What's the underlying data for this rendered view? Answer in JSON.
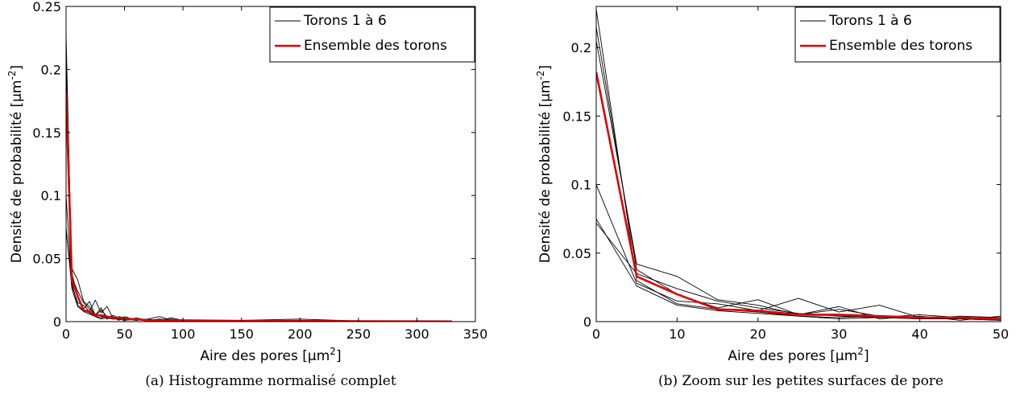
{
  "chart_data": [
    {
      "type": "line",
      "caption": "(a) Histogramme normalisé complet",
      "xlabel": "Aire des pores [μm",
      "xlabel_sup": "2",
      "xlabel_end": "]",
      "ylabel": "Densité de probabilité [μm",
      "ylabel_sup": "-2",
      "ylabel_end": "]",
      "xlim": [
        0,
        350
      ],
      "ylim": [
        0,
        0.25
      ],
      "xticks": [
        0,
        50,
        100,
        150,
        200,
        250,
        300,
        350
      ],
      "xtick_labels": [
        "0",
        "50",
        "100",
        "150",
        "200",
        "250",
        "300",
        "350"
      ],
      "yticks": [
        0,
        0.05,
        0.1,
        0.15,
        0.2,
        0.25
      ],
      "ytick_labels": [
        "0",
        "0.05",
        "0.1",
        "0.15",
        "0.2",
        "0.25"
      ],
      "grid": false,
      "legend": "top-right",
      "legend_entries": [
        "Torons 1 à 6",
        "Ensemble des torons"
      ],
      "series": [
        {
          "group": "Torons 1 à 6",
          "x": [
            0,
            5,
            10,
            15,
            20,
            25,
            30,
            35,
            40,
            45,
            50,
            60,
            70,
            80,
            90,
            100,
            150,
            200,
            250,
            300,
            330
          ],
          "y": [
            0.228,
            0.03,
            0.013,
            0.009,
            0.007,
            0.004,
            0.003,
            0.004,
            0.002,
            0.003,
            0.002,
            0.002,
            0.001,
            0.002,
            0.001,
            0.001,
            0.0005,
            0.0005,
            0.0003,
            0.0002,
            0.0001
          ]
        },
        {
          "group": "Torons 1 à 6",
          "x": [
            0,
            5,
            10,
            15,
            20,
            25,
            30,
            35,
            40,
            45,
            50,
            60,
            70,
            80,
            90,
            100,
            150,
            200,
            250,
            300,
            330
          ],
          "y": [
            0.215,
            0.038,
            0.02,
            0.01,
            0.016,
            0.005,
            0.011,
            0.002,
            0.004,
            0.001,
            0.004,
            0.001,
            0.002,
            0.001,
            0.003,
            0.001,
            0.001,
            0.002,
            0.0005,
            0.0003,
            0.0001
          ]
        },
        {
          "group": "Torons 1 à 6",
          "x": [
            0,
            5,
            10,
            15,
            20,
            25,
            30,
            35,
            40,
            45,
            50,
            60,
            70,
            80,
            90,
            100,
            150,
            200,
            250,
            300,
            330
          ],
          "y": [
            0.205,
            0.042,
            0.033,
            0.016,
            0.012,
            0.005,
            0.009,
            0.004,
            0.002,
            0.004,
            0.003,
            0.002,
            0.001,
            0.002,
            0.001,
            0.001,
            0.001,
            0.001,
            0.0004,
            0.0002,
            0.0001
          ]
        },
        {
          "group": "Torons 1 à 6",
          "x": [
            0,
            5,
            10,
            15,
            20,
            25,
            30,
            35,
            40,
            45,
            50,
            60,
            70,
            80,
            90,
            100,
            150,
            200,
            250,
            300,
            330
          ],
          "y": [
            0.1,
            0.028,
            0.015,
            0.013,
            0.008,
            0.017,
            0.007,
            0.012,
            0.003,
            0.002,
            0.001,
            0.003,
            0.001,
            0.001,
            0.002,
            0.0005,
            0.001,
            0.0005,
            0.0003,
            0.0002,
            0.0001
          ]
        },
        {
          "group": "Torons 1 à 6",
          "x": [
            0,
            5,
            10,
            15,
            20,
            25,
            30,
            35,
            40,
            45,
            50,
            60,
            70,
            80,
            90,
            100,
            150,
            200,
            250,
            300,
            330
          ],
          "y": [
            0.075,
            0.026,
            0.012,
            0.008,
            0.006,
            0.004,
            0.002,
            0.003,
            0.005,
            0.003,
            0.002,
            0.001,
            0.002,
            0.004,
            0.001,
            0.001,
            0.0005,
            0.001,
            0.0003,
            0.0002,
            0.0001
          ]
        },
        {
          "group": "Torons 1 à 6",
          "x": [
            0,
            5,
            10,
            15,
            20,
            25,
            30,
            35,
            40,
            45,
            50,
            60,
            70,
            80,
            90,
            100,
            150,
            200,
            250,
            300,
            330
          ],
          "y": [
            0.072,
            0.035,
            0.024,
            0.015,
            0.01,
            0.006,
            0.004,
            0.003,
            0.002,
            0.002,
            0.001,
            0.002,
            0.001,
            0.001,
            0.001,
            0.0005,
            0.0005,
            0.0005,
            0.0003,
            0.0002,
            0.0001
          ]
        },
        {
          "group": "Ensemble des torons",
          "x": [
            0,
            5,
            10,
            15,
            20,
            25,
            30,
            35,
            40,
            45,
            50,
            60,
            70,
            80,
            90,
            100,
            150,
            200,
            250,
            300,
            330
          ],
          "y": [
            0.182,
            0.033,
            0.02,
            0.009,
            0.008,
            0.005,
            0.005,
            0.004,
            0.003,
            0.003,
            0.002,
            0.002,
            0.001,
            0.001,
            0.001,
            0.001,
            0.0005,
            0.0005,
            0.0003,
            0.0002,
            0.0001
          ]
        }
      ]
    },
    {
      "type": "line",
      "caption": "(b) Zoom sur les petites surfaces de pore",
      "xlabel": "Aire des pores [μm",
      "xlabel_sup": "2",
      "xlabel_end": "]",
      "ylabel": "Densité de probabilité [μm",
      "ylabel_sup": "-2",
      "ylabel_end": "]",
      "xlim": [
        0,
        50
      ],
      "ylim": [
        0,
        0.23
      ],
      "xticks": [
        0,
        10,
        20,
        30,
        40,
        50
      ],
      "xtick_labels": [
        "0",
        "10",
        "20",
        "30",
        "40",
        "50"
      ],
      "yticks": [
        0,
        0.05,
        0.1,
        0.15,
        0.2
      ],
      "ytick_labels": [
        "0",
        "0.05",
        "0.1",
        "0.15",
        "0.2"
      ],
      "grid": false,
      "legend": "top-right",
      "legend_entries": [
        "Torons 1 à 6",
        "Ensemble des torons"
      ],
      "series": [
        {
          "group": "Torons 1 à 6",
          "x": [
            0,
            5,
            10,
            15,
            20,
            25,
            30,
            35,
            40,
            45,
            50
          ],
          "y": [
            0.228,
            0.03,
            0.013,
            0.009,
            0.007,
            0.004,
            0.003,
            0.004,
            0.002,
            0.003,
            0.002
          ]
        },
        {
          "group": "Torons 1 à 6",
          "x": [
            0,
            5,
            10,
            15,
            20,
            25,
            30,
            35,
            40,
            45,
            50
          ],
          "y": [
            0.215,
            0.038,
            0.02,
            0.01,
            0.016,
            0.005,
            0.011,
            0.002,
            0.004,
            0.001,
            0.004
          ]
        },
        {
          "group": "Torons 1 à 6",
          "x": [
            0,
            5,
            10,
            15,
            20,
            25,
            30,
            35,
            40,
            45,
            50
          ],
          "y": [
            0.205,
            0.042,
            0.033,
            0.016,
            0.012,
            0.005,
            0.009,
            0.004,
            0.002,
            0.004,
            0.003
          ]
        },
        {
          "group": "Torons 1 à 6",
          "x": [
            0,
            5,
            10,
            15,
            20,
            25,
            30,
            35,
            40,
            45,
            50
          ],
          "y": [
            0.1,
            0.028,
            0.015,
            0.013,
            0.008,
            0.017,
            0.007,
            0.012,
            0.003,
            0.002,
            0.001
          ]
        },
        {
          "group": "Torons 1 à 6",
          "x": [
            0,
            5,
            10,
            15,
            20,
            25,
            30,
            35,
            40,
            45,
            50
          ],
          "y": [
            0.075,
            0.026,
            0.012,
            0.008,
            0.006,
            0.004,
            0.002,
            0.003,
            0.005,
            0.003,
            0.002
          ]
        },
        {
          "group": "Torons 1 à 6",
          "x": [
            0,
            5,
            10,
            15,
            20,
            25,
            30,
            35,
            40,
            45,
            50
          ],
          "y": [
            0.072,
            0.035,
            0.024,
            0.015,
            0.01,
            0.006,
            0.004,
            0.003,
            0.002,
            0.002,
            0.001
          ]
        },
        {
          "group": "Ensemble des torons",
          "x": [
            0,
            5,
            10,
            15,
            20,
            25,
            30,
            35,
            40,
            45,
            50
          ],
          "y": [
            0.182,
            0.033,
            0.02,
            0.009,
            0.008,
            0.005,
            0.005,
            0.004,
            0.003,
            0.003,
            0.002
          ]
        }
      ]
    }
  ],
  "colors": {
    "torons": "#000000",
    "ensemble": "#e00000",
    "axes": "#000000",
    "background": "#ffffff"
  }
}
